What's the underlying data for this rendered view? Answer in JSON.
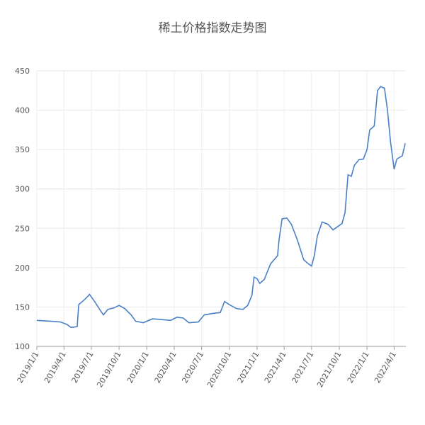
{
  "chart_data": {
    "type": "line",
    "title": "稀土价格指数走势图",
    "x": [
      "2019/1/1",
      "2019/2/15",
      "2019/3/20",
      "2019/4/10",
      "2019/4/25",
      "2019/5/15",
      "2019/5/20",
      "2019/6/10",
      "2019/6/25",
      "2019/7/10",
      "2019/8/1",
      "2019/8/10",
      "2019/8/25",
      "2019/9/15",
      "2019/10/1",
      "2019/10/20",
      "2019/11/10",
      "2019/11/25",
      "2019/12/20",
      "2020/1/20",
      "2020/2/20",
      "2020/3/20",
      "2020/4/10",
      "2020/5/1",
      "2020/5/20",
      "2020/6/20",
      "2020/7/10",
      "2020/8/10",
      "2020/9/1",
      "2020/9/15",
      "2020/10/1",
      "2020/10/25",
      "2020/11/15",
      "2020/12/1",
      "2020/12/15",
      "2020/12/22",
      "2021/1/1",
      "2021/1/10",
      "2021/1/25",
      "2021/2/15",
      "2021/3/10",
      "2021/3/15",
      "2021/3/25",
      "2021/4/10",
      "2021/4/25",
      "2021/5/15",
      "2021/6/5",
      "2021/6/20",
      "2021/7/1",
      "2021/7/10",
      "2021/7/20",
      "2021/8/5",
      "2021/8/25",
      "2021/9/10",
      "2021/9/25",
      "2021/10/10",
      "2021/10/20",
      "2021/10/30",
      "2021/11/10",
      "2021/11/20",
      "2021/12/5",
      "2021/12/20",
      "2022/1/1",
      "2022/1/10",
      "2022/1/25",
      "2022/2/5",
      "2022/2/15",
      "2022/2/28",
      "2022/3/10",
      "2022/3/20",
      "2022/4/1",
      "2022/4/10",
      "2022/4/28",
      "2022/5/8"
    ],
    "series": [
      {
        "color": "#4a7fc8",
        "values": [
          133,
          132,
          131,
          128,
          124,
          125,
          153,
          160,
          166,
          158,
          145,
          140,
          147,
          149,
          152,
          148,
          140,
          132,
          130,
          135,
          134,
          133,
          137,
          136,
          130,
          131,
          140,
          142,
          143,
          157,
          153,
          148,
          147,
          152,
          165,
          188,
          186,
          180,
          185,
          205,
          215,
          235,
          262,
          263,
          255,
          235,
          210,
          205,
          202,
          215,
          240,
          258,
          255,
          248,
          252,
          256,
          270,
          318,
          316,
          330,
          337,
          338,
          350,
          375,
          380,
          425,
          430,
          428,
          400,
          360,
          325,
          338,
          342,
          358
        ]
      }
    ],
    "xlim": [
      "2019/1/1",
      "2022/5/10"
    ],
    "xticks": [
      "2019/1/1",
      "2019/4/1",
      "2019/7/1",
      "2019/10/1",
      "2020/1/1",
      "2020/4/1",
      "2020/7/1",
      "2020/10/1",
      "2021/1/1",
      "2021/4/1",
      "2021/7/1",
      "2021/10/1",
      "2022/1/1",
      "2022/4/1"
    ],
    "ylim": [
      100,
      450
    ],
    "yticks": [
      100,
      150,
      200,
      250,
      300,
      350,
      400,
      450
    ],
    "grid": true
  }
}
